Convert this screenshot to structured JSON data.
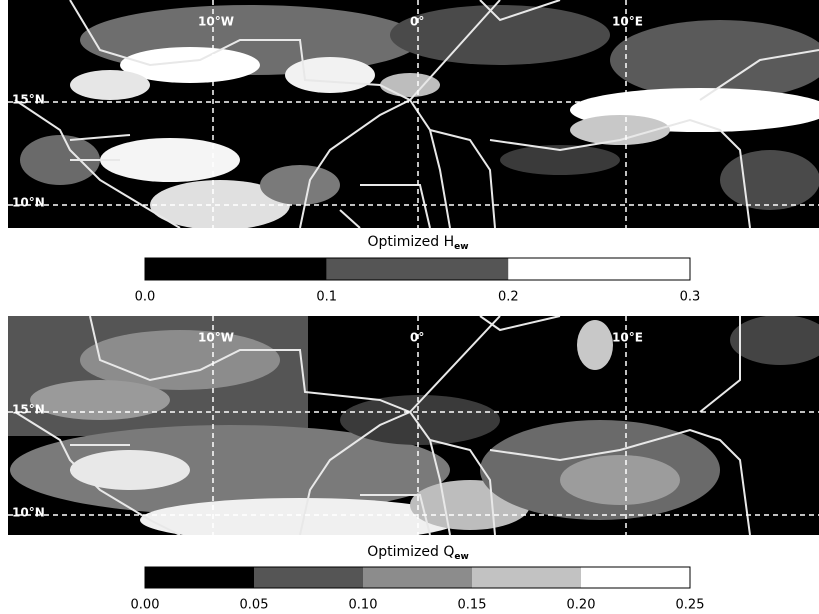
{
  "panels": [
    {
      "lon_labels": [
        "10°W",
        "0°",
        "10°E"
      ],
      "lat_labels": [
        "15°N",
        "10°N"
      ],
      "title": "Optimized H",
      "title_subscript": "ew",
      "colorbar": {
        "colors": [
          "#000000",
          "#555555",
          "#8c8c8c",
          "#c2c2c2",
          "#ffffff"
        ],
        "tick_labels": [
          "0.0",
          "0.1",
          "0.2",
          "0.3"
        ]
      }
    },
    {
      "lon_labels": [
        "10°W",
        "0°",
        "10°E"
      ],
      "lat_labels": [
        "15°N",
        "10°N"
      ],
      "title": "Optimized Q",
      "title_subscript": "ew",
      "colorbar": {
        "colors": [
          "#000000",
          "#555555",
          "#8c8c8c",
          "#c2c2c2",
          "#ffffff"
        ],
        "tick_labels": [
          "0.00",
          "0.05",
          "0.10",
          "0.15",
          "0.20",
          "0.25"
        ]
      }
    }
  ]
}
